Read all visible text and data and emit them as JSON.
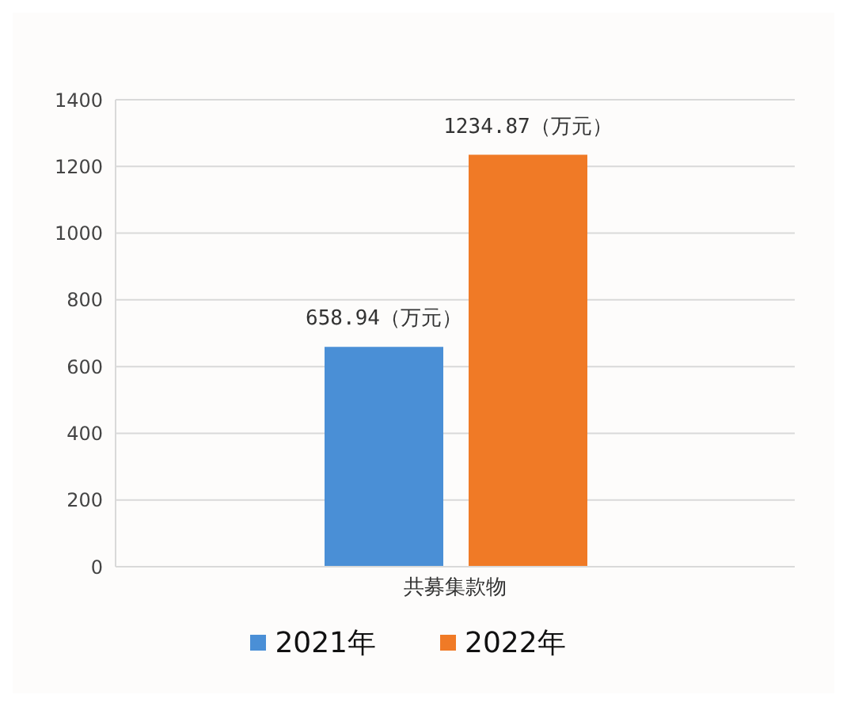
{
  "chart_data": {
    "type": "bar",
    "categories": [
      "共募集款物"
    ],
    "series": [
      {
        "name": "2021年",
        "color": "#4a8fd6",
        "values": [
          658.94
        ],
        "value_labels": [
          "658.94（万元）"
        ]
      },
      {
        "name": "2022年",
        "color": "#f07a26",
        "values": [
          1234.87
        ],
        "value_labels": [
          "1234.87（万元）"
        ]
      }
    ],
    "ylim": [
      0,
      1400
    ],
    "yticks": [
      0,
      200,
      400,
      600,
      800,
      1000,
      1200,
      1400
    ],
    "grid": "y",
    "legend": "bottom"
  }
}
